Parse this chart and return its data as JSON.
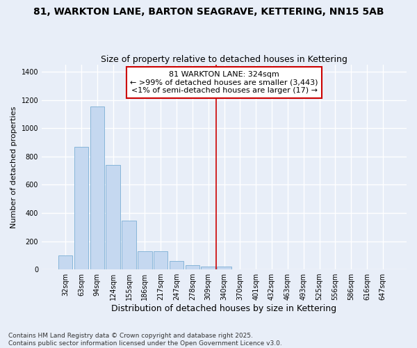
{
  "title": "81, WARKTON LANE, BARTON SEAGRAVE, KETTERING, NN15 5AB",
  "subtitle": "Size of property relative to detached houses in Kettering",
  "xlabel": "Distribution of detached houses by size in Kettering",
  "ylabel": "Number of detached properties",
  "categories": [
    "32sqm",
    "63sqm",
    "94sqm",
    "124sqm",
    "155sqm",
    "186sqm",
    "217sqm",
    "247sqm",
    "278sqm",
    "309sqm",
    "340sqm",
    "370sqm",
    "401sqm",
    "432sqm",
    "463sqm",
    "493sqm",
    "525sqm",
    "556sqm",
    "586sqm",
    "616sqm",
    "647sqm"
  ],
  "values": [
    100,
    870,
    1155,
    740,
    345,
    130,
    130,
    60,
    30,
    20,
    20,
    0,
    0,
    0,
    0,
    0,
    0,
    0,
    0,
    0,
    0
  ],
  "bar_color": "#c5d8f0",
  "bar_edge_color": "#7aaed4",
  "background_color": "#e8eef8",
  "grid_color": "#ffffff",
  "vline_x": 9.5,
  "vline_color": "#cc0000",
  "annotation_text": "81 WARKTON LANE: 324sqm\n← >99% of detached houses are smaller (3,443)\n<1% of semi-detached houses are larger (17) →",
  "ylim": [
    0,
    1450
  ],
  "yticks": [
    0,
    200,
    400,
    600,
    800,
    1000,
    1200,
    1400
  ],
  "footnote": "Contains HM Land Registry data © Crown copyright and database right 2025.\nContains public sector information licensed under the Open Government Licence v3.0.",
  "title_fontsize": 10,
  "subtitle_fontsize": 9,
  "ylabel_fontsize": 8,
  "xlabel_fontsize": 9,
  "tick_fontsize": 7,
  "annotation_fontsize": 8,
  "footnote_fontsize": 6.5
}
